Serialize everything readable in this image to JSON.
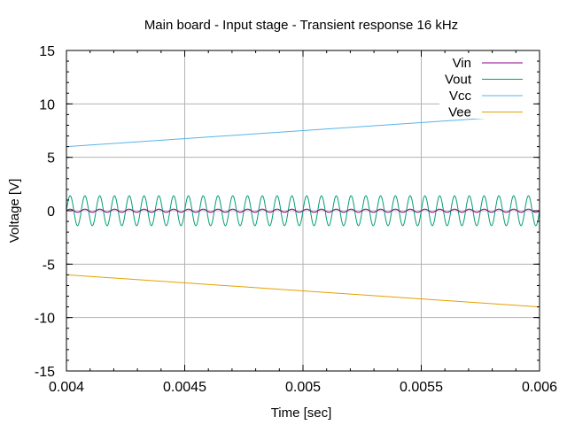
{
  "chart_data": {
    "type": "line",
    "title": "Main board - Input stage - Transient response  16 kHz",
    "xlabel": "Time [sec]",
    "ylabel": "Voltage [V]",
    "xlim": [
      0.004,
      0.006
    ],
    "ylim": [
      -15,
      15
    ],
    "x_ticks": [
      0.004,
      0.0045,
      0.005,
      0.0055,
      0.006
    ],
    "x_tick_labels": [
      "0.004",
      "0.0045",
      "0.005",
      "0.0055",
      "0.006"
    ],
    "y_ticks": [
      15,
      10,
      5,
      0,
      -5,
      -10,
      -15
    ],
    "y_tick_labels": [
      "15",
      "10",
      "5",
      "0",
      "-5",
      "-10",
      "-15"
    ],
    "grid": true,
    "legend_position": "top-right",
    "series": [
      {
        "name": "Vin",
        "color": "#8b008b",
        "kind": "sine",
        "amplitude": 0.15,
        "frequency_hz": 16000,
        "offset": 0
      },
      {
        "name": "Vout",
        "color": "#009e73",
        "kind": "sine",
        "amplitude": 1.4,
        "frequency_hz": 16000,
        "offset": 0
      },
      {
        "name": "Vcc",
        "color": "#56b4e9",
        "kind": "linear",
        "x": [
          0.004,
          0.006
        ],
        "values": [
          6.0,
          9.0
        ]
      },
      {
        "name": "Vee",
        "color": "#e69f00",
        "kind": "linear",
        "x": [
          0.004,
          0.006
        ],
        "values": [
          -6.0,
          -9.0
        ]
      }
    ]
  }
}
